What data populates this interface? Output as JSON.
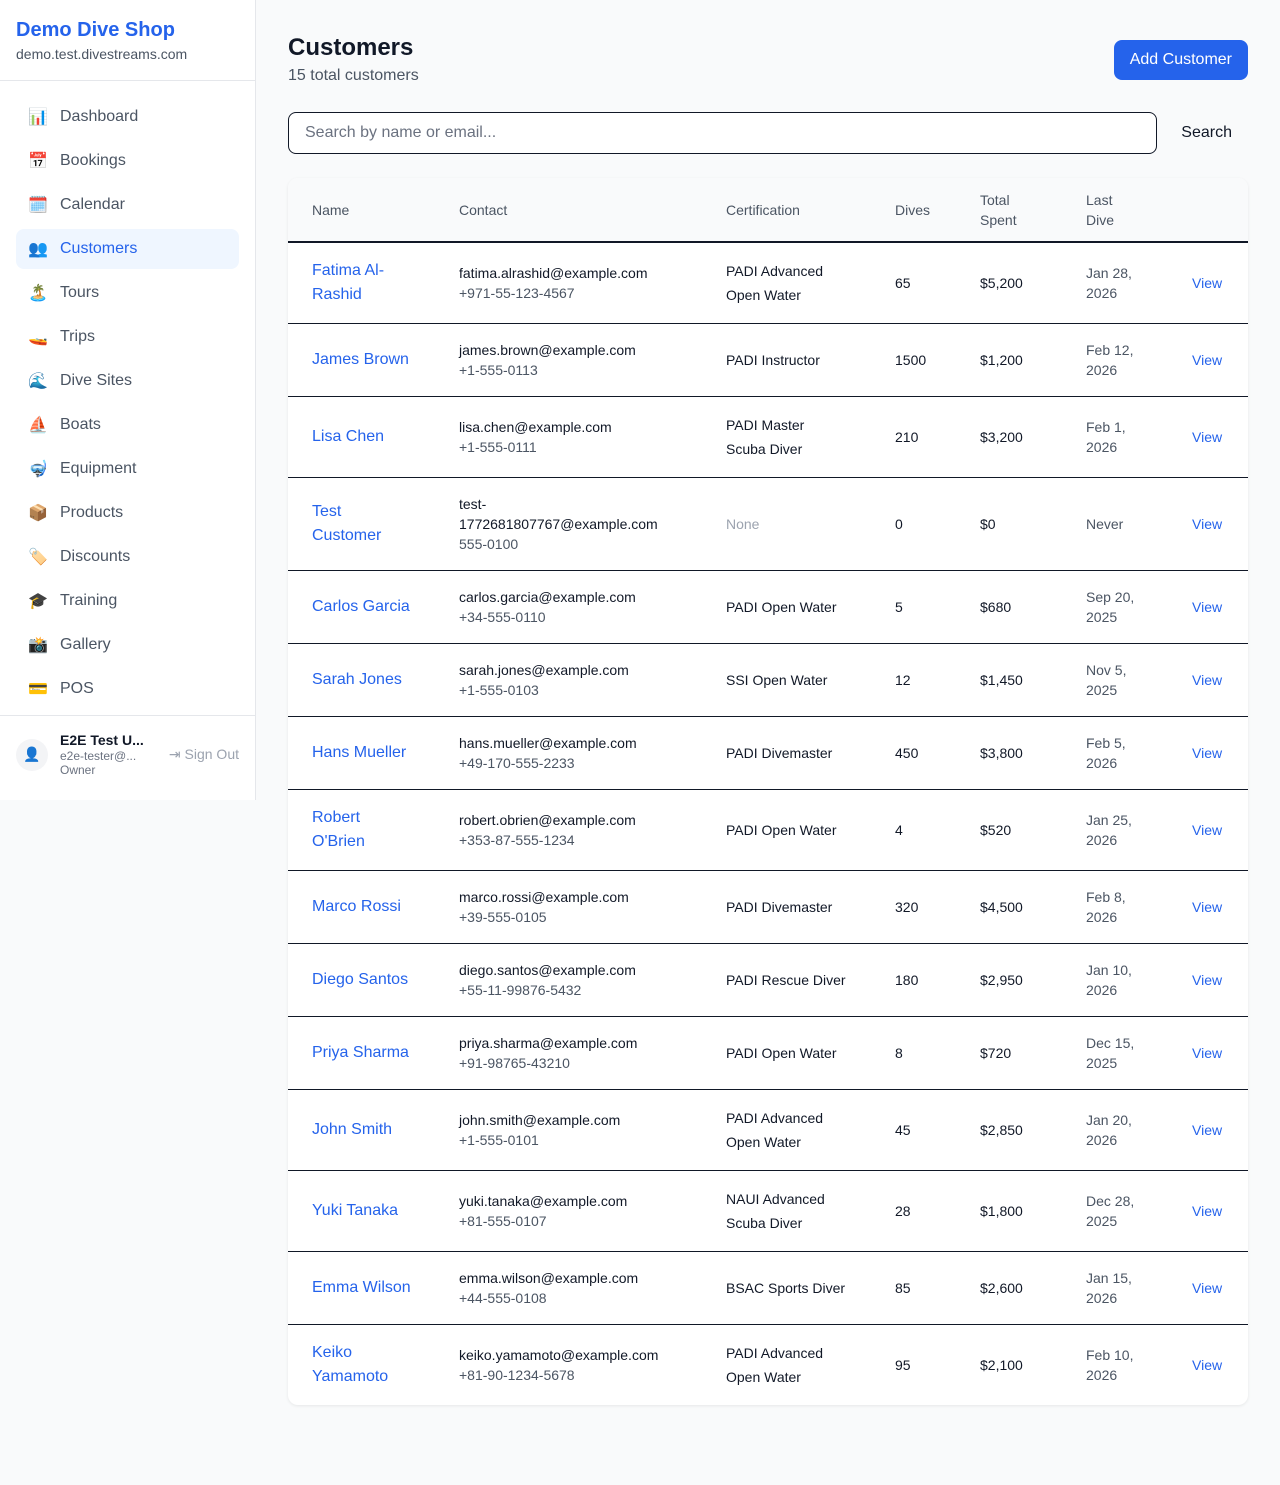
{
  "brand": {
    "name": "Demo Dive Shop",
    "domain": "demo.test.divestreams.com"
  },
  "nav": [
    {
      "icon": "📊",
      "label": "Dashboard"
    },
    {
      "icon": "📅",
      "label": "Bookings"
    },
    {
      "icon": "🗓️",
      "label": "Calendar"
    },
    {
      "icon": "👥",
      "label": "Customers",
      "active": true
    },
    {
      "icon": "🏝️",
      "label": "Tours"
    },
    {
      "icon": "🚤",
      "label": "Trips"
    },
    {
      "icon": "🌊",
      "label": "Dive Sites"
    },
    {
      "icon": "⛵",
      "label": "Boats"
    },
    {
      "icon": "🤿",
      "label": "Equipment"
    },
    {
      "icon": "📦",
      "label": "Products"
    },
    {
      "icon": "🏷️",
      "label": "Discounts"
    },
    {
      "icon": "🎓",
      "label": "Training"
    },
    {
      "icon": "📸",
      "label": "Gallery"
    },
    {
      "icon": "💳",
      "label": "POS"
    }
  ],
  "user": {
    "name": "E2E Test U...",
    "email": "e2e-tester@...",
    "role": "Owner",
    "sign_out": "Sign Out"
  },
  "page": {
    "title": "Customers",
    "subtitle": "15 total customers",
    "add_button": "Add Customer"
  },
  "search": {
    "placeholder": "Search by name or email...",
    "button": "Search"
  },
  "table": {
    "headers": [
      "Name",
      "Contact",
      "Certification",
      "Dives",
      "Total Spent",
      "Last Dive"
    ],
    "view_label": "View",
    "rows": [
      {
        "name": "Fatima Al-Rashid",
        "email": "fatima.alrashid@example.com",
        "phone": "+971-55-123-4567",
        "cert": "PADI Advanced Open Water",
        "dives": "65",
        "spent": "$5,200",
        "last": "Jan 28, 2026"
      },
      {
        "name": "James Brown",
        "email": "james.brown@example.com",
        "phone": "+1-555-0113",
        "cert": "PADI Instructor",
        "dives": "1500",
        "spent": "$1,200",
        "last": "Feb 12, 2026"
      },
      {
        "name": "Lisa Chen",
        "email": "lisa.chen@example.com",
        "phone": "+1-555-0111",
        "cert": "PADI Master Scuba Diver",
        "dives": "210",
        "spent": "$3,200",
        "last": "Feb 1, 2026"
      },
      {
        "name": "Test Customer",
        "email": "test-1772681807767@example.com",
        "phone": "555-0100",
        "cert": "None",
        "dives": "0",
        "spent": "$0",
        "last": "Never"
      },
      {
        "name": "Carlos Garcia",
        "email": "carlos.garcia@example.com",
        "phone": "+34-555-0110",
        "cert": "PADI Open Water",
        "dives": "5",
        "spent": "$680",
        "last": "Sep 20, 2025"
      },
      {
        "name": "Sarah Jones",
        "email": "sarah.jones@example.com",
        "phone": "+1-555-0103",
        "cert": "SSI Open Water",
        "dives": "12",
        "spent": "$1,450",
        "last": "Nov 5, 2025"
      },
      {
        "name": "Hans Mueller",
        "email": "hans.mueller@example.com",
        "phone": "+49-170-555-2233",
        "cert": "PADI Divemaster",
        "dives": "450",
        "spent": "$3,800",
        "last": "Feb 5, 2026"
      },
      {
        "name": "Robert O'Brien",
        "email": "robert.obrien@example.com",
        "phone": "+353-87-555-1234",
        "cert": "PADI Open Water",
        "dives": "4",
        "spent": "$520",
        "last": "Jan 25, 2026"
      },
      {
        "name": "Marco Rossi",
        "email": "marco.rossi@example.com",
        "phone": "+39-555-0105",
        "cert": "PADI Divemaster",
        "dives": "320",
        "spent": "$4,500",
        "last": "Feb 8, 2026"
      },
      {
        "name": "Diego Santos",
        "email": "diego.santos@example.com",
        "phone": "+55-11-99876-5432",
        "cert": "PADI Rescue Diver",
        "dives": "180",
        "spent": "$2,950",
        "last": "Jan 10, 2026"
      },
      {
        "name": "Priya Sharma",
        "email": "priya.sharma@example.com",
        "phone": "+91-98765-43210",
        "cert": "PADI Open Water",
        "dives": "8",
        "spent": "$720",
        "last": "Dec 15, 2025"
      },
      {
        "name": "John Smith",
        "email": "john.smith@example.com",
        "phone": "+1-555-0101",
        "cert": "PADI Advanced Open Water",
        "dives": "45",
        "spent": "$2,850",
        "last": "Jan 20, 2026"
      },
      {
        "name": "Yuki Tanaka",
        "email": "yuki.tanaka@example.com",
        "phone": "+81-555-0107",
        "cert": "NAUI Advanced Scuba Diver",
        "dives": "28",
        "spent": "$1,800",
        "last": "Dec 28, 2025"
      },
      {
        "name": "Emma Wilson",
        "email": "emma.wilson@example.com",
        "phone": "+44-555-0108",
        "cert": "BSAC Sports Diver",
        "dives": "85",
        "spent": "$2,600",
        "last": "Jan 15, 2026"
      },
      {
        "name": "Keiko Yamamoto",
        "email": "keiko.yamamoto@example.com",
        "phone": "+81-90-1234-5678",
        "cert": "PADI Advanced Open Water",
        "dives": "95",
        "spent": "$2,100",
        "last": "Feb 10, 2026"
      }
    ]
  },
  "colors": {
    "accent": "#2563eb",
    "active_bg": "#eff6ff"
  }
}
